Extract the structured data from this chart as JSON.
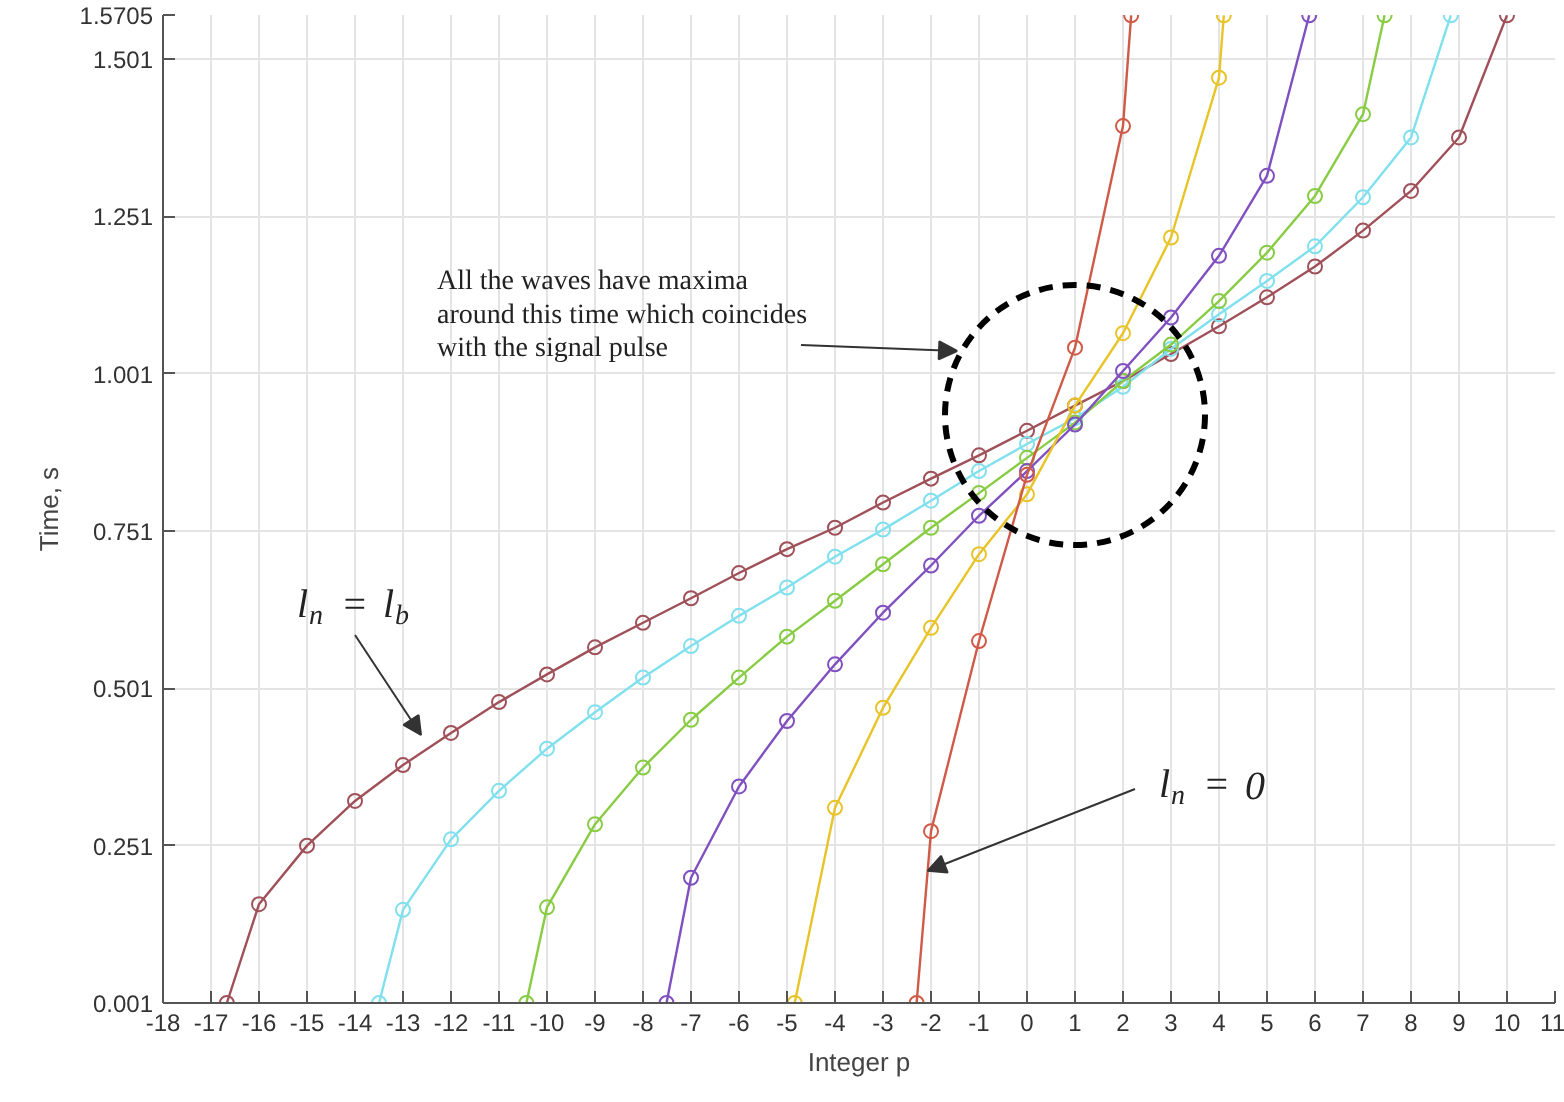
{
  "chart_data": {
    "type": "line",
    "xlabel": "Integer p",
    "ylabel": "Time, s",
    "xlim": [
      -18,
      11
    ],
    "ylim": [
      0.001,
      1.5705
    ],
    "xticks": [
      -18,
      -17,
      -16,
      -15,
      -14,
      -13,
      -12,
      -11,
      -10,
      -9,
      -8,
      -7,
      -6,
      -5,
      -4,
      -3,
      -2,
      -1,
      0,
      1,
      2,
      3,
      4,
      5,
      6,
      7,
      8,
      9,
      10,
      11
    ],
    "yticks": [
      0.001,
      0.251,
      0.501,
      0.751,
      1.001,
      1.251,
      1.501,
      1.5705
    ],
    "grid": true,
    "marker": "circle",
    "line_style": "solid",
    "series": [
      {
        "color": "#a05058",
        "x": [
          -16.67,
          -16,
          -15,
          -14,
          -13,
          -12,
          -11,
          -10,
          -9,
          -8,
          -7,
          -6,
          -5,
          -4,
          -3,
          -2,
          -1,
          0,
          1,
          2,
          3,
          4,
          5,
          6,
          7,
          8,
          9,
          10.0
        ],
        "values": [
          0.001,
          0.158,
          0.251,
          0.322,
          0.379,
          0.43,
          0.479,
          0.523,
          0.566,
          0.605,
          0.644,
          0.684,
          0.722,
          0.756,
          0.796,
          0.834,
          0.871,
          0.91,
          0.95,
          0.989,
          1.032,
          1.076,
          1.122,
          1.171,
          1.228,
          1.291,
          1.376,
          1.57
        ]
      },
      {
        "color": "#80e0ee",
        "x": [
          -13.5,
          -13,
          -12,
          -11,
          -10,
          -9,
          -8,
          -7,
          -6,
          -5,
          -4,
          -3,
          -2,
          -1,
          0,
          1,
          2,
          3,
          4,
          5,
          6,
          7,
          8,
          8.83
        ],
        "values": [
          0.001,
          0.149,
          0.261,
          0.338,
          0.405,
          0.463,
          0.518,
          0.568,
          0.616,
          0.661,
          0.71,
          0.753,
          0.799,
          0.846,
          0.889,
          0.93,
          0.98,
          1.04,
          1.095,
          1.148,
          1.203,
          1.281,
          1.376,
          1.57
        ]
      },
      {
        "color": "#88cc44",
        "x": [
          -10.43,
          -10,
          -9,
          -8,
          -7,
          -6,
          -5,
          -4,
          -3,
          -2,
          -1,
          0,
          1,
          2,
          3,
          4,
          5,
          6,
          7,
          7.45
        ],
        "values": [
          0.001,
          0.153,
          0.285,
          0.375,
          0.451,
          0.518,
          0.583,
          0.64,
          0.698,
          0.756,
          0.811,
          0.867,
          0.923,
          0.989,
          1.047,
          1.116,
          1.193,
          1.283,
          1.413,
          1.57
        ]
      },
      {
        "color": "#8050c0",
        "x": [
          -7.51,
          -7,
          -6,
          -5,
          -4,
          -3,
          -2,
          -1,
          0,
          1,
          2,
          3,
          4,
          5,
          5.88
        ],
        "values": [
          0.001,
          0.2,
          0.345,
          0.449,
          0.539,
          0.621,
          0.696,
          0.775,
          0.846,
          0.92,
          1.005,
          1.09,
          1.188,
          1.315,
          1.57
        ]
      },
      {
        "color": "#e8c428",
        "x": [
          -4.84,
          -4,
          -3,
          -2,
          -1,
          0,
          1,
          2,
          3,
          4,
          4.1
        ],
        "values": [
          0.001,
          0.311,
          0.47,
          0.597,
          0.714,
          0.809,
          0.95,
          1.065,
          1.217,
          1.471,
          1.57
        ]
      },
      {
        "color": "#d05a48",
        "x": [
          -2.3,
          -2,
          -1,
          0,
          1,
          2,
          2.17
        ],
        "values": [
          0.001,
          0.274,
          0.576,
          0.84,
          1.042,
          1.394,
          1.57
        ]
      }
    ],
    "annotations": [
      "All the waves have maxima\naround this time which coincides\nwith the signal pulse",
      "l$_{n}$ = l$_{b}$",
      {
        "text": "l$_{n}$ = 0",
        "x": -2.07,
        "y": 0.211
      }
    ]
  }
}
